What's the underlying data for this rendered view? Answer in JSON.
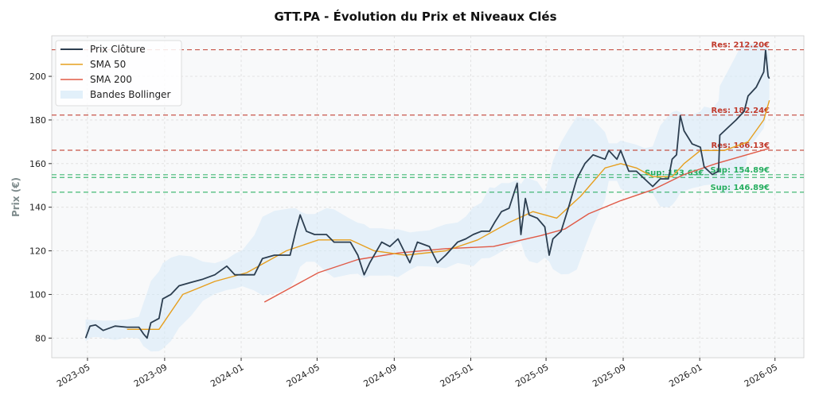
{
  "chart_data": {
    "type": "line",
    "title": "GTT.PA - Évolution du Prix et Niveaux Clés",
    "xlabel": "",
    "ylabel": "Prix (€)",
    "xlim": [
      "2023-03-05",
      "2026-06-16"
    ],
    "ylim": [
      71,
      218.6
    ],
    "grid": true,
    "legend_position": "top-left",
    "x_ticks": [
      "2023-05",
      "2023-09",
      "2024-01",
      "2024-05",
      "2024-09",
      "2025-01",
      "2025-05",
      "2025-09",
      "2026-01",
      "2026-05"
    ],
    "y_ticks": [
      80,
      100,
      120,
      140,
      160,
      180,
      200
    ],
    "series": [
      {
        "name": "Prix Clôture",
        "color": "#2c3e50",
        "points": [
          [
            "2023-04-28",
            80
          ],
          [
            "2023-05-05",
            85.5
          ],
          [
            "2023-05-14",
            86
          ],
          [
            "2023-05-26",
            83.5
          ],
          [
            "2023-06-14",
            85.5
          ],
          [
            "2023-07-03",
            85
          ],
          [
            "2023-07-22",
            85
          ],
          [
            "2023-07-29",
            82
          ],
          [
            "2023-08-04",
            80
          ],
          [
            "2023-08-10",
            87
          ],
          [
            "2023-08-23",
            89
          ],
          [
            "2023-08-29",
            98
          ],
          [
            "2023-09-11",
            100
          ],
          [
            "2023-09-24",
            104
          ],
          [
            "2023-10-13",
            105.5
          ],
          [
            "2023-11-01",
            107
          ],
          [
            "2023-11-20",
            109
          ],
          [
            "2023-12-09",
            113
          ],
          [
            "2023-12-22",
            109
          ],
          [
            "2024-01-03",
            109
          ],
          [
            "2024-01-22",
            109
          ],
          [
            "2024-02-04",
            116.5
          ],
          [
            "2024-02-23",
            118
          ],
          [
            "2024-03-19",
            118
          ],
          [
            "2024-03-28",
            129
          ],
          [
            "2024-04-04",
            136.5
          ],
          [
            "2024-04-14",
            129
          ],
          [
            "2024-04-27",
            127.5
          ],
          [
            "2024-05-16",
            127.5
          ],
          [
            "2024-05-28",
            124
          ],
          [
            "2024-06-23",
            124
          ],
          [
            "2024-07-05",
            118
          ],
          [
            "2024-07-15",
            109
          ],
          [
            "2024-07-24",
            114.5
          ],
          [
            "2024-08-12",
            124
          ],
          [
            "2024-08-25",
            122
          ],
          [
            "2024-09-07",
            125.5
          ],
          [
            "2024-09-26",
            114.5
          ],
          [
            "2024-10-08",
            124
          ],
          [
            "2024-10-27",
            122
          ],
          [
            "2024-11-09",
            114.5
          ],
          [
            "2024-11-22",
            118
          ],
          [
            "2024-12-11",
            124
          ],
          [
            "2024-12-24",
            125.5
          ],
          [
            "2025-01-05",
            127.5
          ],
          [
            "2025-01-18",
            129
          ],
          [
            "2025-01-31",
            129
          ],
          [
            "2025-02-08",
            133
          ],
          [
            "2025-02-19",
            138
          ],
          [
            "2025-03-03",
            139.5
          ],
          [
            "2025-03-16",
            151
          ],
          [
            "2025-03-22",
            127.5
          ],
          [
            "2025-03-29",
            144
          ],
          [
            "2025-04-04",
            136.5
          ],
          [
            "2025-04-17",
            135
          ],
          [
            "2025-04-29",
            131
          ],
          [
            "2025-05-06",
            118
          ],
          [
            "2025-05-12",
            125.5
          ],
          [
            "2025-05-25",
            129
          ],
          [
            "2025-06-06",
            140
          ],
          [
            "2025-06-19",
            153
          ],
          [
            "2025-07-02",
            160
          ],
          [
            "2025-07-15",
            164
          ],
          [
            "2025-08-03",
            162
          ],
          [
            "2025-08-09",
            166
          ],
          [
            "2025-08-22",
            162
          ],
          [
            "2025-08-28",
            166
          ],
          [
            "2025-09-10",
            156.5
          ],
          [
            "2025-09-22",
            156.5
          ],
          [
            "2025-10-05",
            153
          ],
          [
            "2025-10-18",
            149.5
          ],
          [
            "2025-10-30",
            153
          ],
          [
            "2025-11-12",
            153
          ],
          [
            "2025-11-18",
            162
          ],
          [
            "2025-11-25",
            164
          ],
          [
            "2025-12-01",
            182
          ],
          [
            "2025-12-07",
            175
          ],
          [
            "2025-12-20",
            169
          ],
          [
            "2026-01-02",
            167.5
          ],
          [
            "2026-01-08",
            158.5
          ],
          [
            "2026-01-21",
            155
          ],
          [
            "2026-01-31",
            156.5
          ],
          [
            "2026-02-02",
            173
          ],
          [
            "2026-02-15",
            176.5
          ],
          [
            "2026-02-28",
            180
          ],
          [
            "2026-03-13",
            184
          ],
          [
            "2026-03-19",
            191
          ],
          [
            "2026-04-01",
            195
          ],
          [
            "2026-04-13",
            202
          ],
          [
            "2026-04-16",
            212
          ],
          [
            "2026-04-20",
            200
          ],
          [
            "2026-04-22",
            199
          ]
        ]
      },
      {
        "name": "SMA 50",
        "color": "#e69f1e",
        "points": [
          [
            "2023-07-03",
            84
          ],
          [
            "2023-08-23",
            84
          ],
          [
            "2023-09-30",
            100
          ],
          [
            "2023-11-20",
            106
          ],
          [
            "2024-01-10",
            110
          ],
          [
            "2024-03-13",
            120
          ],
          [
            "2024-05-03",
            125
          ],
          [
            "2024-06-23",
            125
          ],
          [
            "2024-07-31",
            120
          ],
          [
            "2024-09-19",
            118
          ],
          [
            "2024-11-22",
            120
          ],
          [
            "2025-01-12",
            125
          ],
          [
            "2025-03-03",
            133
          ],
          [
            "2025-04-10",
            138
          ],
          [
            "2025-05-18",
            135
          ],
          [
            "2025-06-25",
            145
          ],
          [
            "2025-08-03",
            158
          ],
          [
            "2025-08-28",
            160
          ],
          [
            "2025-09-22",
            158
          ],
          [
            "2025-10-18",
            154
          ],
          [
            "2025-11-18",
            154
          ],
          [
            "2025-12-07",
            160
          ],
          [
            "2026-01-02",
            166
          ],
          [
            "2026-02-09",
            166
          ],
          [
            "2026-03-19",
            170
          ],
          [
            "2026-04-13",
            180
          ],
          [
            "2026-04-22",
            189
          ]
        ]
      },
      {
        "name": "SMA 200",
        "color": "#e05a47",
        "points": [
          [
            "2024-02-07",
            96.5
          ],
          [
            "2024-05-03",
            110
          ],
          [
            "2024-07-05",
            116
          ],
          [
            "2024-09-07",
            119
          ],
          [
            "2024-11-22",
            121
          ],
          [
            "2025-02-06",
            122
          ],
          [
            "2025-04-23",
            127
          ],
          [
            "2025-05-31",
            130
          ],
          [
            "2025-07-08",
            137
          ],
          [
            "2025-08-28",
            143
          ],
          [
            "2025-10-18",
            148
          ],
          [
            "2025-12-07",
            155
          ],
          [
            "2026-01-27",
            160
          ],
          [
            "2026-04-22",
            167
          ]
        ]
      }
    ],
    "band": {
      "name": "Bandes Bollinger",
      "color": "#d6e9f8"
    },
    "levels": [
      {
        "label": "Res: 212.20€",
        "value": 212.2,
        "kind": "resistance"
      },
      {
        "label": "Res: 182.24€",
        "value": 182.24,
        "kind": "resistance"
      },
      {
        "label": "Res: 166.13€",
        "value": 166.13,
        "kind": "resistance"
      },
      {
        "label": "Sup: 154.89€",
        "value": 154.89,
        "kind": "support"
      },
      {
        "label": "Sup: 153.63€",
        "value": 153.63,
        "kind": "support"
      },
      {
        "label": "Sup: 146.89€",
        "value": 146.89,
        "kind": "support"
      }
    ],
    "colors": {
      "resistance": "#c0392b",
      "support": "#27ae60"
    }
  }
}
